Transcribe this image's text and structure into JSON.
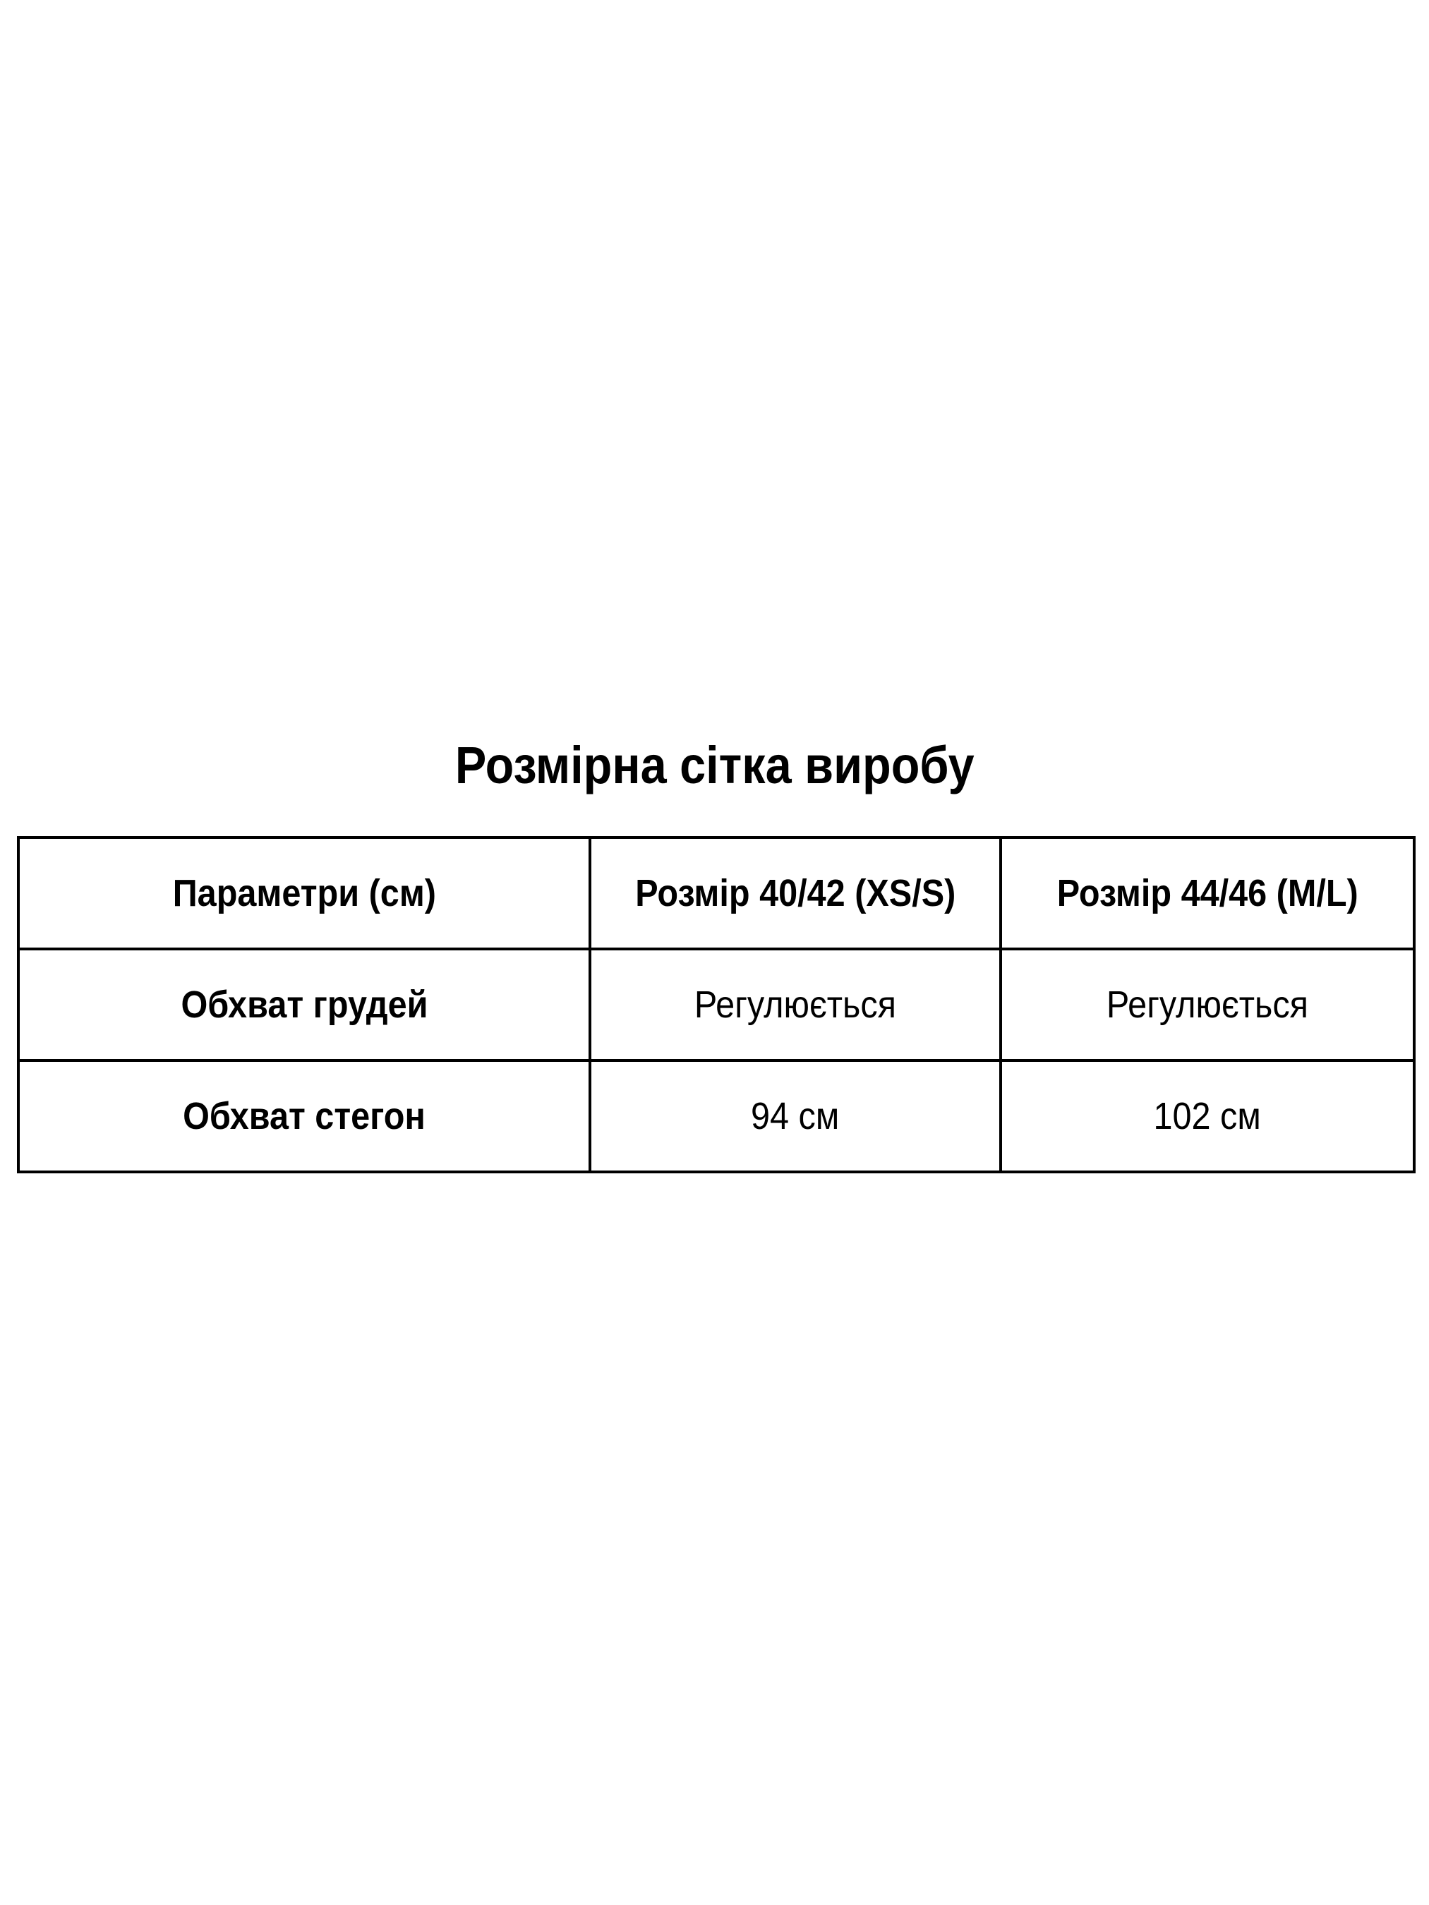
{
  "title": "Розмірна сітка виробу",
  "table": {
    "headers": [
      "Параметри (см)",
      "Розмір 40/42 (XS/S)",
      "Розмір 44/46 (M/L)"
    ],
    "rows": [
      [
        "Обхват грудей",
        "Регулюється",
        "Регулюється"
      ],
      [
        "Обхват стегон",
        "94 см",
        "102 см"
      ]
    ]
  }
}
